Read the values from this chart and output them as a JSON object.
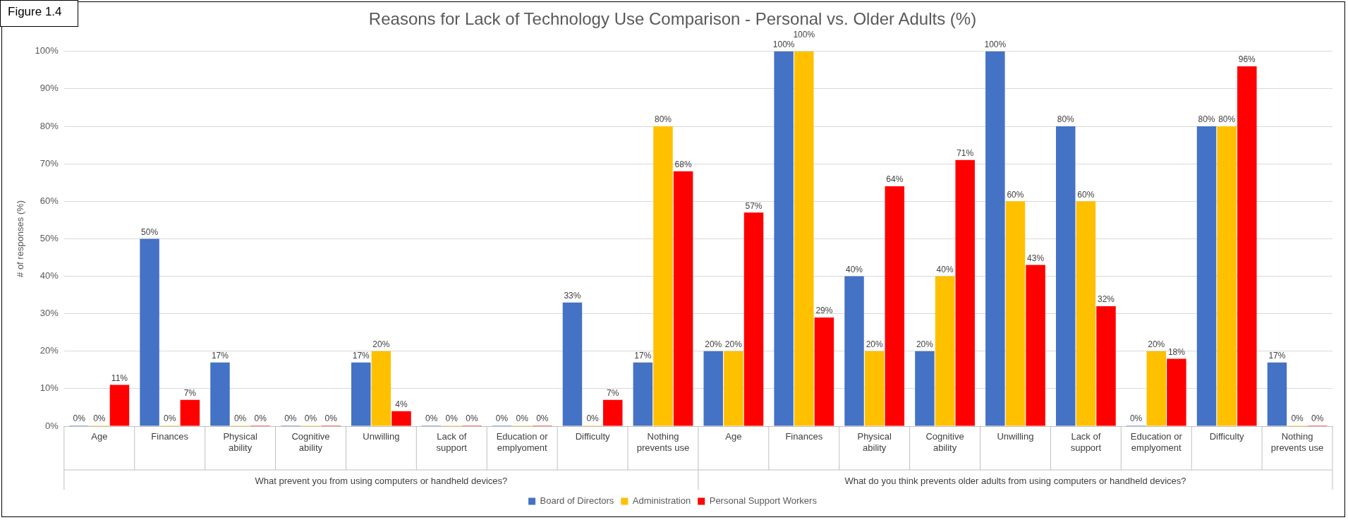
{
  "chart_data": {
    "type": "bar",
    "title": "Reasons for Lack of Technology Use Comparison - Personal vs. Older Adults (%)",
    "ylabel": "# of responses (%)",
    "categories": [
      "Age",
      "Finances",
      "Physical ability",
      "Cognitive ability",
      "Unwilling",
      "Lack of support",
      "Education or emplyoment",
      "Difficulty",
      "Nothing prevents use",
      "Age",
      "Finances",
      "Physical ability",
      "Cognitive ability",
      "Unwilling",
      "Lack of support",
      "Education or emplyoment",
      "Difficulty",
      "Nothing prevents use"
    ],
    "series": [
      {
        "name": "Board of Directors",
        "color": "#4472c4",
        "values": [
          0,
          50,
          17,
          0,
          17,
          0,
          0,
          33,
          17,
          20,
          100,
          40,
          20,
          100,
          80,
          0,
          80,
          17
        ],
        "value_labels": [
          "0%",
          "50%",
          "17%",
          "0%",
          "17%",
          "0%",
          "0%",
          "33%",
          "17%",
          "20%",
          "100%",
          "40%",
          "20%",
          "100%",
          "80%",
          "0%",
          "80%",
          "17%"
        ]
      },
      {
        "name": "Administration",
        "color": "#ffc000",
        "values": [
          0,
          0,
          0,
          0,
          20,
          0,
          0,
          0,
          80,
          20,
          100,
          20,
          40,
          60,
          60,
          20,
          80,
          0
        ],
        "value_labels": [
          "0%",
          "0%",
          "0%",
          "0%",
          "20%",
          "0%",
          "0%",
          "0%",
          "80%",
          "20%",
          "100%",
          "20%",
          "40%",
          "60%",
          "60%",
          "20%",
          "80%",
          "0%"
        ]
      },
      {
        "name": "Personal Support Workers",
        "color": "#ff0000",
        "values": [
          11,
          7,
          0,
          0,
          4,
          0,
          0,
          7,
          68,
          57,
          29,
          64,
          71,
          43,
          32,
          18,
          96,
          0
        ],
        "value_labels": [
          "11%",
          "7%",
          "0%",
          "0%",
          "4%",
          "0%",
          "0%",
          "7%",
          "68%",
          "57%",
          "29%",
          "64%",
          "71%",
          "43%",
          "32%",
          "18%",
          "96%",
          "0%"
        ]
      }
    ],
    "ylim": [
      0,
      100
    ],
    "yticks": [
      {
        "value": 0,
        "label": "0%"
      },
      {
        "value": 10,
        "label": "10%"
      },
      {
        "value": 20,
        "label": "20%"
      },
      {
        "value": 30,
        "label": "30%"
      },
      {
        "value": 40,
        "label": "40%"
      },
      {
        "value": 50,
        "label": "50%"
      },
      {
        "value": 60,
        "label": "60%"
      },
      {
        "value": 70,
        "label": "70%"
      },
      {
        "value": 80,
        "label": "80%"
      },
      {
        "value": 90,
        "label": "90%"
      },
      {
        "value": 100,
        "label": "100%"
      }
    ],
    "grid": "y",
    "legend": "bottom",
    "annotations": [
      "Figure 1.4",
      "What prevent you from using computers or handheld devices?",
      "What do you think prevents older adults from using computers or handheld devices?"
    ]
  }
}
